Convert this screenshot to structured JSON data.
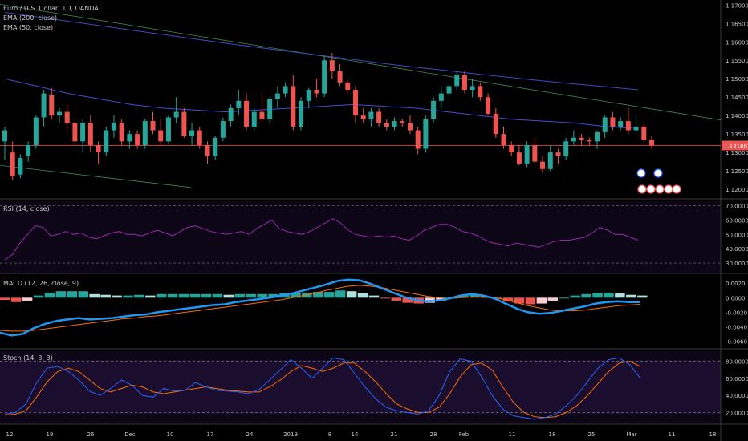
{
  "main": {
    "title": "Euro / U.S. Dollar, 1D, OANDA",
    "indicators": [
      "EMA (200, close)",
      "EMA (50, close)"
    ],
    "price_label": "1.13188",
    "y_ticks": [
      "1.17000",
      "1.16500",
      "1.16000",
      "1.15500",
      "1.15000",
      "1.14500",
      "1.14000",
      "1.13500",
      "1.13000",
      "1.12500",
      "1.12000"
    ]
  },
  "rsi": {
    "title": "RSI (14, close)",
    "ticks": [
      "70.0000",
      "60.0000",
      "50.0000",
      "40.0000",
      "30.0000"
    ]
  },
  "macd": {
    "title": "MACD (12, 26, close, 9)",
    "ticks": [
      "0.0020",
      "0.0000",
      "-0.0020",
      "-0.0040",
      "-0.0060"
    ]
  },
  "stoch": {
    "title": "Stoch (14, 3, 3)",
    "ticks": [
      "80.0000",
      "60.0000",
      "40.0000",
      "20.0000"
    ]
  },
  "x_axis": [
    "12",
    "19",
    "26",
    "Dec",
    "10",
    "17",
    "24",
    "2019",
    "8",
    "14",
    "21",
    "28",
    "Feb",
    "11",
    "18",
    "25",
    "Mar",
    "11",
    "18"
  ],
  "colors": {
    "up": "#26a69a",
    "down": "#ef5350",
    "ema200": "#3b4cc0",
    "ema50": "#3f51d0",
    "trend": "#3a8a50",
    "rsi": "#9c27b0",
    "macd": "#2196f3",
    "signal": "#ff6d00",
    "stoch_k": "#2962ff",
    "stoch_d": "#ff6d00"
  },
  "chart_data": [
    {
      "type": "candlestick",
      "title": "Euro / U.S. Dollar, 1D, OANDA",
      "ylim": [
        1.1185,
        1.1705
      ],
      "candles": [
        [
          1.133,
          1.137,
          1.128,
          1.136
        ],
        [
          1.13,
          1.133,
          1.1225,
          1.1235
        ],
        [
          1.124,
          1.1295,
          1.123,
          1.1285
        ],
        [
          1.129,
          1.133,
          1.1275,
          1.132
        ],
        [
          1.132,
          1.14,
          1.131,
          1.1395
        ],
        [
          1.1395,
          1.147,
          1.137,
          1.146
        ],
        [
          1.1455,
          1.1475,
          1.139,
          1.14
        ],
        [
          1.14,
          1.142,
          1.138,
          1.141
        ],
        [
          1.141,
          1.143,
          1.136,
          1.138
        ],
        [
          1.138,
          1.139,
          1.132,
          1.133
        ],
        [
          1.133,
          1.139,
          1.13,
          1.138
        ],
        [
          1.138,
          1.14,
          1.13,
          1.132
        ],
        [
          1.132,
          1.133,
          1.127,
          1.13
        ],
        [
          1.13,
          1.137,
          1.129,
          1.136
        ],
        [
          1.136,
          1.14,
          1.134,
          1.138
        ],
        [
          1.138,
          1.139,
          1.132,
          1.133
        ],
        [
          1.133,
          1.136,
          1.131,
          1.135
        ],
        [
          1.135,
          1.136,
          1.131,
          1.132
        ],
        [
          1.132,
          1.139,
          1.131,
          1.1385
        ],
        [
          1.1385,
          1.141,
          1.135,
          1.136
        ],
        [
          1.136,
          1.139,
          1.132,
          1.133
        ],
        [
          1.133,
          1.14,
          1.1325,
          1.1395
        ],
        [
          1.1395,
          1.145,
          1.138,
          1.141
        ],
        [
          1.141,
          1.142,
          1.134,
          1.1345
        ],
        [
          1.1345,
          1.138,
          1.132,
          1.136
        ],
        [
          1.136,
          1.137,
          1.131,
          1.132
        ],
        [
          1.132,
          1.133,
          1.127,
          1.129
        ],
        [
          1.129,
          1.1345,
          1.128,
          1.134
        ],
        [
          1.134,
          1.1395,
          1.133,
          1.1385
        ],
        [
          1.1385,
          1.143,
          1.137,
          1.142
        ],
        [
          1.142,
          1.147,
          1.14,
          1.144
        ],
        [
          1.144,
          1.146,
          1.136,
          1.137
        ],
        [
          1.137,
          1.142,
          1.136,
          1.141
        ],
        [
          1.141,
          1.146,
          1.138,
          1.139
        ],
        [
          1.139,
          1.145,
          1.138,
          1.1445
        ],
        [
          1.1445,
          1.148,
          1.142,
          1.146
        ],
        [
          1.146,
          1.149,
          1.145,
          1.148
        ],
        [
          1.148,
          1.151,
          1.136,
          1.137
        ],
        [
          1.137,
          1.145,
          1.136,
          1.144
        ],
        [
          1.144,
          1.1475,
          1.142,
          1.147
        ],
        [
          1.147,
          1.15,
          1.145,
          1.146
        ],
        [
          1.146,
          1.156,
          1.145,
          1.155
        ],
        [
          1.155,
          1.157,
          1.15,
          1.152
        ],
        [
          1.152,
          1.154,
          1.148,
          1.149
        ],
        [
          1.149,
          1.15,
          1.146,
          1.147
        ],
        [
          1.147,
          1.148,
          1.138,
          1.14
        ],
        [
          1.14,
          1.142,
          1.138,
          1.139
        ],
        [
          1.139,
          1.142,
          1.137,
          1.141
        ],
        [
          1.141,
          1.142,
          1.137,
          1.138
        ],
        [
          1.138,
          1.139,
          1.136,
          1.137
        ],
        [
          1.137,
          1.1395,
          1.136,
          1.1385
        ],
        [
          1.1385,
          1.139,
          1.137,
          1.138
        ],
        [
          1.138,
          1.14,
          1.135,
          1.136
        ],
        [
          1.136,
          1.137,
          1.1295,
          1.131
        ],
        [
          1.131,
          1.14,
          1.13,
          1.139
        ],
        [
          1.139,
          1.145,
          1.138,
          1.144
        ],
        [
          1.144,
          1.148,
          1.142,
          1.146
        ],
        [
          1.146,
          1.149,
          1.144,
          1.148
        ],
        [
          1.148,
          1.152,
          1.147,
          1.151
        ],
        [
          1.151,
          1.152,
          1.146,
          1.147
        ],
        [
          1.147,
          1.15,
          1.145,
          1.148
        ],
        [
          1.148,
          1.149,
          1.144,
          1.145
        ],
        [
          1.145,
          1.146,
          1.14,
          1.1405
        ],
        [
          1.1405,
          1.142,
          1.134,
          1.135
        ],
        [
          1.135,
          1.137,
          1.131,
          1.132
        ],
        [
          1.132,
          1.133,
          1.129,
          1.13
        ],
        [
          1.13,
          1.132,
          1.1265,
          1.127
        ],
        [
          1.127,
          1.133,
          1.126,
          1.132
        ],
        [
          1.132,
          1.134,
          1.127,
          1.1275
        ],
        [
          1.1275,
          1.129,
          1.1245,
          1.1255
        ],
        [
          1.1255,
          1.132,
          1.125,
          1.13
        ],
        [
          1.13,
          1.131,
          1.127,
          1.129
        ],
        [
          1.129,
          1.134,
          1.128,
          1.133
        ],
        [
          1.133,
          1.136,
          1.132,
          1.134
        ],
        [
          1.134,
          1.135,
          1.132,
          1.1335
        ],
        [
          1.1335,
          1.134,
          1.132,
          1.133
        ],
        [
          1.133,
          1.136,
          1.131,
          1.1355
        ],
        [
          1.1355,
          1.14,
          1.134,
          1.1395
        ],
        [
          1.1395,
          1.141,
          1.136,
          1.137
        ],
        [
          1.137,
          1.1395,
          1.136,
          1.1385
        ],
        [
          1.1385,
          1.142,
          1.135,
          1.136
        ],
        [
          1.136,
          1.14,
          1.135,
          1.137
        ],
        [
          1.137,
          1.138,
          1.133,
          1.1335
        ],
        [
          1.1335,
          1.1345,
          1.131,
          1.1319
        ]
      ],
      "ema200": [
        1.168,
        1.1668,
        1.1656,
        1.1644,
        1.1632,
        1.162,
        1.1608,
        1.1596,
        1.1585,
        1.1574,
        1.1563,
        1.1552,
        1.1541,
        1.1531,
        1.1522,
        1.1512,
        1.1503,
        1.1494,
        1.1486,
        1.1478,
        1.147
      ],
      "ema50": [
        1.15,
        1.148,
        1.146,
        1.1445,
        1.143,
        1.142,
        1.1415,
        1.141,
        1.1415,
        1.142,
        1.1425,
        1.143,
        1.1425,
        1.142,
        1.141,
        1.14,
        1.139,
        1.1385,
        1.138,
        1.137,
        1.1365
      ],
      "last_price": 1.13188
    },
    {
      "type": "line",
      "title": "RSI (14, close)",
      "ylim": [
        25,
        72
      ],
      "values": [
        32,
        36,
        44,
        50,
        56,
        55,
        49,
        50,
        52,
        50,
        51,
        48,
        47,
        49,
        51,
        52,
        50,
        50,
        49,
        51,
        53,
        51,
        49,
        52,
        55,
        56,
        54,
        52,
        51,
        50,
        51,
        52,
        50,
        54,
        57,
        60,
        54,
        52,
        51,
        50,
        52,
        55,
        58,
        61,
        58,
        53,
        50,
        49,
        48,
        49,
        48,
        49,
        47,
        46,
        49,
        53,
        55,
        57,
        57,
        55,
        52,
        51,
        49,
        46,
        44,
        43,
        42,
        44,
        43,
        42,
        41,
        43,
        45,
        46,
        46,
        47,
        48,
        51,
        55,
        53,
        50,
        50,
        48,
        46
      ]
    },
    {
      "type": "line",
      "title": "MACD (12, 26, close, 9)",
      "ylim": [
        -0.0066,
        0.0028
      ],
      "macd": [
        -0.0048,
        -0.0052,
        -0.005,
        -0.0042,
        -0.0036,
        -0.0032,
        -0.003,
        -0.0028,
        -0.003,
        -0.0029,
        -0.0028,
        -0.0026,
        -0.0024,
        -0.0023,
        -0.002,
        -0.0018,
        -0.0016,
        -0.0014,
        -0.0012,
        -0.001,
        -0.0009,
        -0.0006,
        -0.0004,
        -0.0002,
        0.0,
        0.0003,
        0.0006,
        0.001,
        0.0014,
        0.0018,
        0.0023,
        0.0025,
        0.0024,
        0.0019,
        0.0013,
        0.0007,
        0.0001,
        -0.0003,
        -0.0005,
        -0.0004,
        -0.0001,
        0.0003,
        0.0005,
        0.0003,
        -0.0001,
        -0.0008,
        -0.0015,
        -0.002,
        -0.0022,
        -0.0021,
        -0.0018,
        -0.0015,
        -0.0012,
        -0.0008,
        -0.0006,
        -0.0005,
        -0.0006,
        -0.0006
      ],
      "signal": [
        -0.0045,
        -0.0046,
        -0.0046,
        -0.0045,
        -0.0043,
        -0.0041,
        -0.0039,
        -0.0037,
        -0.0035,
        -0.0033,
        -0.0031,
        -0.0029,
        -0.0028,
        -0.0026,
        -0.0025,
        -0.0023,
        -0.0021,
        -0.0019,
        -0.0017,
        -0.0015,
        -0.0013,
        -0.0011,
        -0.0009,
        -0.0007,
        -0.0005,
        -0.0003,
        0.0,
        0.0003,
        0.0006,
        0.001,
        0.0013,
        0.0016,
        0.0017,
        0.0016,
        0.0014,
        0.0011,
        0.0008,
        0.0005,
        0.0002,
        0.0,
        -0.0001,
        0.0,
        0.0001,
        0.0001,
        0.0,
        -0.0003,
        -0.0007,
        -0.0011,
        -0.0014,
        -0.0017,
        -0.0018,
        -0.0018,
        -0.0017,
        -0.0015,
        -0.0013,
        -0.0011,
        -0.001,
        -0.0009
      ],
      "histogram": [
        -0.0003,
        -0.0006,
        -0.0004,
        0.0003,
        0.0007,
        0.0009,
        0.0009,
        0.0009,
        0.0005,
        0.0004,
        0.0003,
        0.0003,
        0.0004,
        0.0003,
        0.0005,
        0.0005,
        0.0005,
        0.0005,
        0.0005,
        0.0005,
        0.0004,
        0.0005,
        0.0005,
        0.0005,
        0.0005,
        0.0006,
        0.0006,
        0.0007,
        0.0008,
        0.0008,
        0.001,
        0.0009,
        0.0007,
        0.0003,
        -0.0001,
        -0.0004,
        -0.0007,
        -0.0008,
        -0.0007,
        -0.0004,
        0.0,
        0.0003,
        0.0004,
        0.0002,
        -0.0001,
        -0.0005,
        -0.0008,
        -0.0009,
        -0.0008,
        -0.0004,
        0.0,
        0.0003,
        0.0005,
        0.0007,
        0.0007,
        0.0006,
        0.0004,
        0.0003
      ]
    },
    {
      "type": "line",
      "title": "Stoch (14, 3, 3)",
      "ylim": [
        10,
        90
      ],
      "k": [
        18,
        20,
        30,
        55,
        72,
        74,
        68,
        58,
        45,
        40,
        48,
        58,
        52,
        40,
        38,
        48,
        45,
        46,
        55,
        50,
        46,
        45,
        44,
        42,
        47,
        58,
        70,
        82,
        72,
        60,
        72,
        84,
        82,
        66,
        50,
        36,
        26,
        22,
        20,
        18,
        22,
        40,
        68,
        83,
        80,
        62,
        40,
        24,
        16,
        14,
        12,
        14,
        18,
        28,
        40,
        56,
        72,
        82,
        84,
        76,
        60
      ],
      "d": [
        17,
        18,
        22,
        38,
        56,
        68,
        72,
        68,
        58,
        48,
        44,
        48,
        52,
        50,
        44,
        42,
        44,
        46,
        48,
        50,
        48,
        46,
        45,
        44,
        44,
        50,
        58,
        68,
        75,
        72,
        68,
        72,
        78,
        78,
        68,
        56,
        42,
        30,
        24,
        20,
        20,
        26,
        42,
        62,
        76,
        78,
        70,
        50,
        32,
        20,
        15,
        14,
        15,
        20,
        28,
        40,
        54,
        68,
        78,
        80,
        74
      ]
    }
  ]
}
